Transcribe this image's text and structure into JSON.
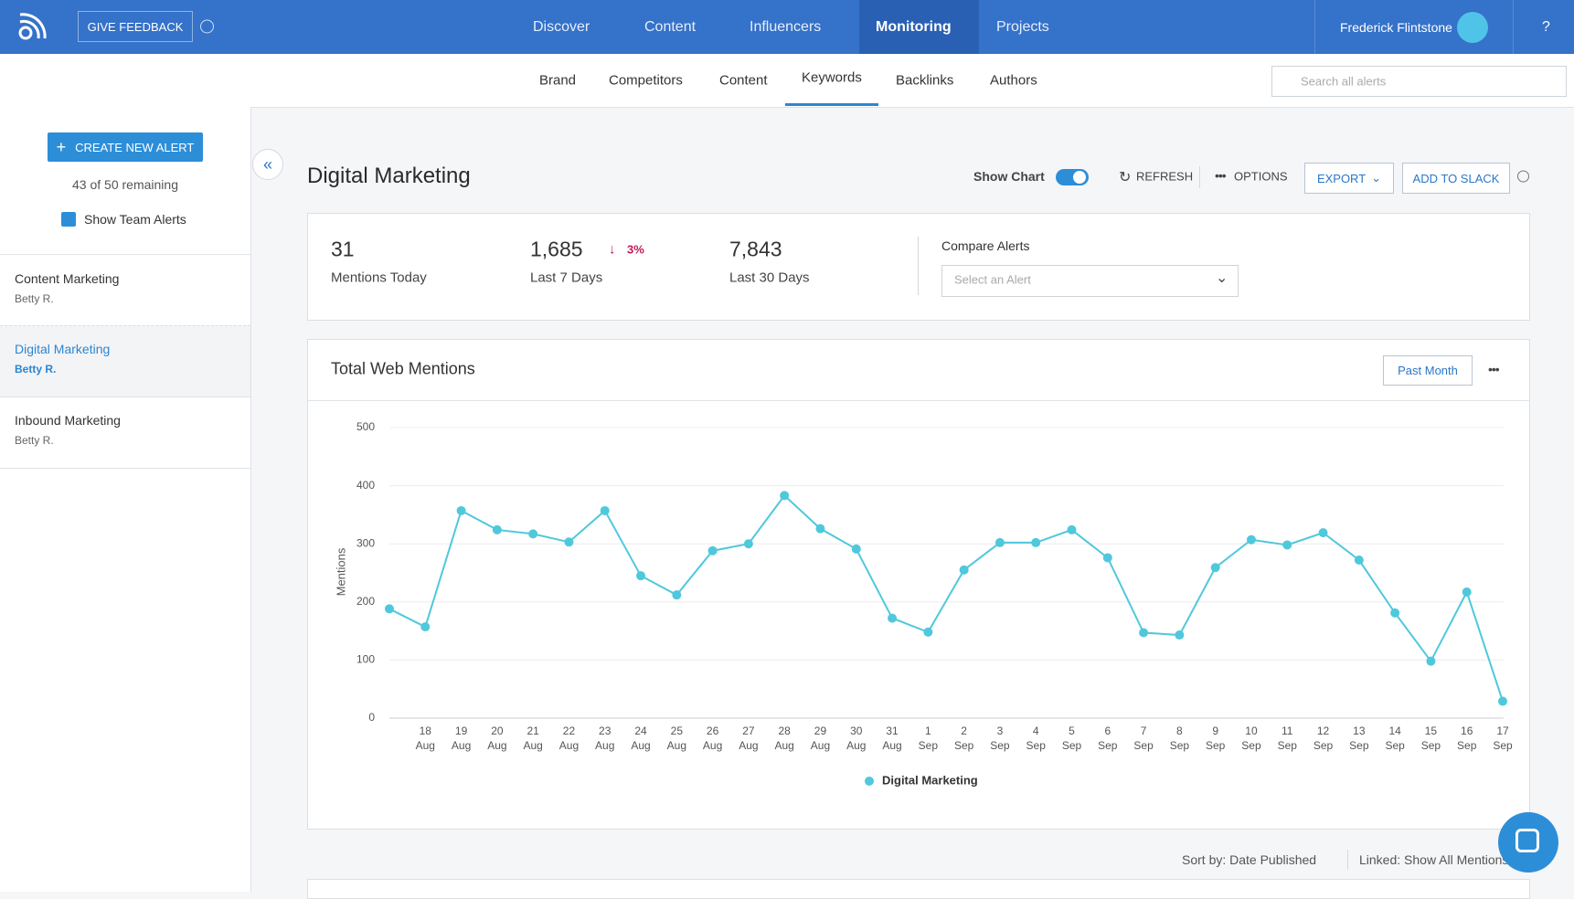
{
  "nav": {
    "feedback": "GIVE FEEDBACK",
    "items": [
      "Discover",
      "Content",
      "Influencers",
      "Monitoring",
      "Projects"
    ],
    "user": "Frederick Flintstone",
    "help": "?"
  },
  "tabs": [
    "Brand",
    "Competitors",
    "Content",
    "Keywords",
    "Backlinks",
    "Authors"
  ],
  "search_placeholder": "Search all alerts",
  "sidebar": {
    "create": "CREATE NEW ALERT",
    "remaining": "43 of 50 remaining",
    "team": "Show Team Alerts",
    "alerts": [
      {
        "name": "Content Marketing",
        "owner": "Betty R."
      },
      {
        "name": "Digital Marketing",
        "owner": "Betty R."
      },
      {
        "name": "Inbound Marketing",
        "owner": "Betty R."
      }
    ]
  },
  "header": {
    "title": "Digital Marketing",
    "show_chart": "Show Chart",
    "refresh": "REFRESH",
    "options": "OPTIONS",
    "export": "EXPORT",
    "slack": "ADD TO SLACK"
  },
  "stats": [
    {
      "value": "31",
      "label": "Mentions Today"
    },
    {
      "value": "1,685",
      "label": "Last 7 Days",
      "change": "3%"
    },
    {
      "value": "7,843",
      "label": "Last 30 Days"
    }
  ],
  "compare": {
    "label": "Compare Alerts",
    "placeholder": "Select an Alert"
  },
  "range": "Past Month",
  "footer": {
    "sort": "Sort by: Date Published",
    "linked": "Linked: Show All Mentions"
  },
  "chart_data": {
    "type": "line",
    "title": "Total Web Mentions",
    "y_label": "Mentions",
    "categories": [
      null,
      "18 Aug",
      "19 Aug",
      "20 Aug",
      "21 Aug",
      "22 Aug",
      "23 Aug",
      "24 Aug",
      "25 Aug",
      "26 Aug",
      "27 Aug",
      "28 Aug",
      "29 Aug",
      "30 Aug",
      "31 Aug",
      "1 Sep",
      "2 Sep",
      "3 Sep",
      "4 Sep",
      "5 Sep",
      "6 Sep",
      "7 Sep",
      "8 Sep",
      "9 Sep",
      "10 Sep",
      "11 Sep",
      "12 Sep",
      "13 Sep",
      "14 Sep",
      "15 Sep",
      "16 Sep",
      "17 Sep"
    ],
    "series": [
      {
        "name": "Digital Marketing",
        "color": "#4fc8dc",
        "values": [
          188,
          157,
          357,
          324,
          317,
          303,
          357,
          245,
          212,
          288,
          300,
          383,
          326,
          291,
          172,
          148,
          255,
          302,
          302,
          324,
          276,
          147,
          143,
          259,
          307,
          298,
          319,
          272,
          181,
          98,
          217,
          29
        ]
      }
    ],
    "ylim": [
      0,
      500
    ],
    "yticks": [
      0,
      100,
      200,
      300,
      400,
      500
    ],
    "grid": true,
    "legend": "bottom"
  }
}
